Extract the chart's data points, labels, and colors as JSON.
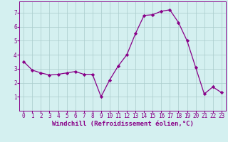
{
  "x": [
    0,
    1,
    2,
    3,
    4,
    5,
    6,
    7,
    8,
    9,
    10,
    11,
    12,
    13,
    14,
    15,
    16,
    17,
    18,
    19,
    20,
    21,
    22,
    23
  ],
  "y": [
    3.5,
    2.9,
    2.7,
    2.55,
    2.6,
    2.7,
    2.8,
    2.6,
    2.6,
    1.0,
    2.2,
    3.2,
    4.0,
    5.5,
    6.8,
    6.85,
    7.1,
    7.2,
    6.3,
    5.0,
    3.1,
    1.2,
    1.7,
    1.3
  ],
  "line_color": "#880088",
  "marker": "D",
  "marker_size": 2.2,
  "bg_color": "#d4f0f0",
  "grid_color": "#aacccc",
  "xlabel": "Windchill (Refroidissement éolien,°C)",
  "xlim": [
    -0.5,
    23.5
  ],
  "ylim": [
    0,
    7.8
  ],
  "yticks": [
    1,
    2,
    3,
    4,
    5,
    6,
    7
  ],
  "xticks": [
    0,
    1,
    2,
    3,
    4,
    5,
    6,
    7,
    8,
    9,
    10,
    11,
    12,
    13,
    14,
    15,
    16,
    17,
    18,
    19,
    20,
    21,
    22,
    23
  ],
  "tick_fontsize": 5.5,
  "xlabel_fontsize": 6.5,
  "axis_color": "#880088",
  "linewidth": 0.9
}
